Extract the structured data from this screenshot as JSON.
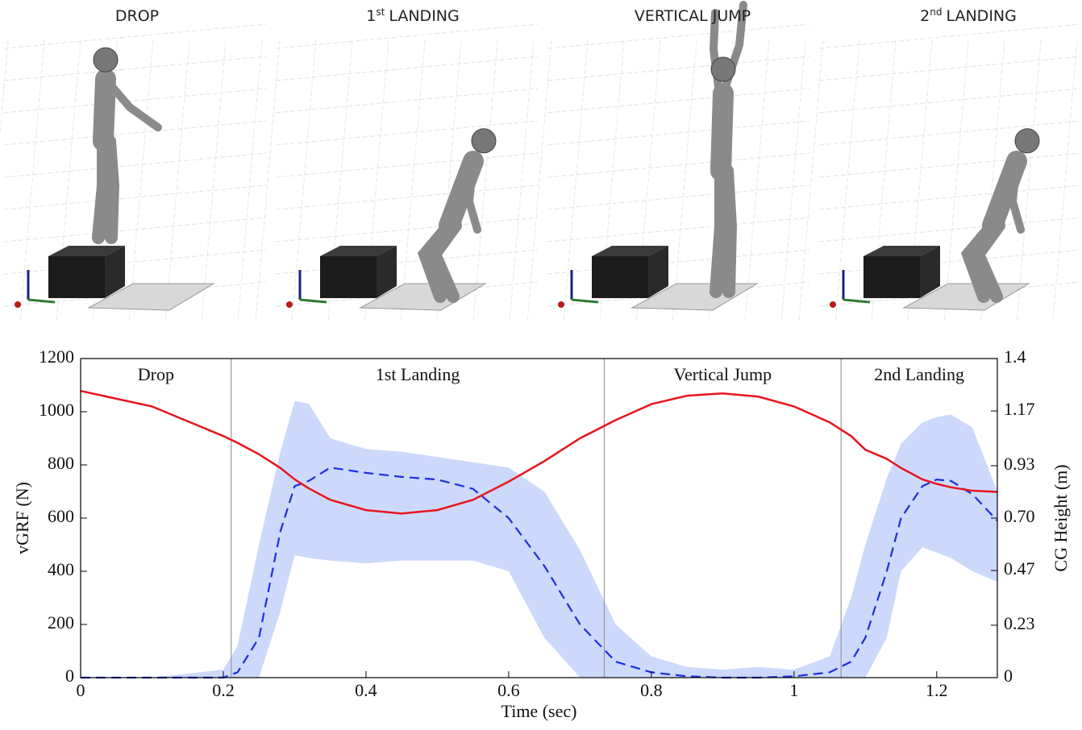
{
  "panels": [
    {
      "title": "DROP"
    },
    {
      "ordinal": "1",
      "suffix": "st",
      "title": "LANDING"
    },
    {
      "title": "VERTICAL JUMP"
    },
    {
      "ordinal": "2",
      "suffix": "nd",
      "title": "LANDING"
    }
  ],
  "chart_data": {
    "type": "line",
    "xlabel": "Time (sec)",
    "ylabel": "vGRF (N)",
    "y2label": "CG Height (m)",
    "x": [
      0,
      0.1,
      0.2,
      0.22,
      0.25,
      0.28,
      0.3,
      0.32,
      0.35,
      0.4,
      0.45,
      0.5,
      0.55,
      0.6,
      0.65,
      0.7,
      0.75,
      0.8,
      0.85,
      0.9,
      0.95,
      1.0,
      1.05,
      1.08,
      1.1,
      1.13,
      1.15,
      1.18,
      1.2,
      1.22,
      1.25,
      1.285
    ],
    "xlim": [
      0,
      1.285
    ],
    "xticks": [
      0,
      0.2,
      0.4,
      0.6,
      0.8,
      1,
      1.2
    ],
    "ylim": [
      0,
      1200
    ],
    "yticks": [
      0,
      200,
      400,
      600,
      800,
      1000,
      1200
    ],
    "y2lim": [
      0,
      1.4
    ],
    "y2ticks": [
      0,
      0.23,
      0.47,
      {
        "value": 0.7,
        "label": "0.70"
      },
      0.93,
      1.17,
      1.4
    ],
    "phase_boundaries": [
      0.211,
      0.734,
      1.066
    ],
    "phase_labels": [
      "Drop",
      "1st Landing",
      "Vertical Jump",
      "2nd Landing"
    ],
    "series": [
      {
        "type": "band",
        "color": "#cdd9fb",
        "lower": [
          0,
          0,
          0,
          0,
          0,
          250,
          460,
          450,
          440,
          430,
          440,
          440,
          440,
          400,
          150,
          0,
          0,
          0,
          0,
          0,
          0,
          0,
          0,
          0,
          0,
          150,
          400,
          490,
          470,
          450,
          400,
          360
        ],
        "upper": [
          0,
          0,
          30,
          120,
          500,
          850,
          1040,
          1030,
          900,
          860,
          850,
          830,
          810,
          790,
          700,
          480,
          200,
          80,
          40,
          30,
          40,
          30,
          80,
          300,
          500,
          750,
          880,
          960,
          980,
          990,
          940,
          700
        ]
      },
      {
        "type": "line",
        "color": "#1a2ee0",
        "dash": true,
        "values": [
          0,
          0,
          0,
          20,
          150,
          550,
          720,
          740,
          790,
          770,
          755,
          745,
          710,
          600,
          420,
          200,
          60,
          20,
          5,
          0,
          0,
          5,
          20,
          60,
          150,
          400,
          600,
          720,
          745,
          740,
          690,
          590
        ]
      },
      {
        "type": "line",
        "color": "#e8141c",
        "axis": "y2",
        "values": [
          1.258,
          1.19,
          1.06,
          1.03,
          0.98,
          0.92,
          0.87,
          0.83,
          0.78,
          0.735,
          0.72,
          0.735,
          0.78,
          0.86,
          0.95,
          1.05,
          1.13,
          1.2,
          1.237,
          1.247,
          1.233,
          1.19,
          1.12,
          1.06,
          1.0,
          0.96,
          0.92,
          0.87,
          0.85,
          0.835,
          0.82,
          0.815
        ]
      }
    ]
  }
}
